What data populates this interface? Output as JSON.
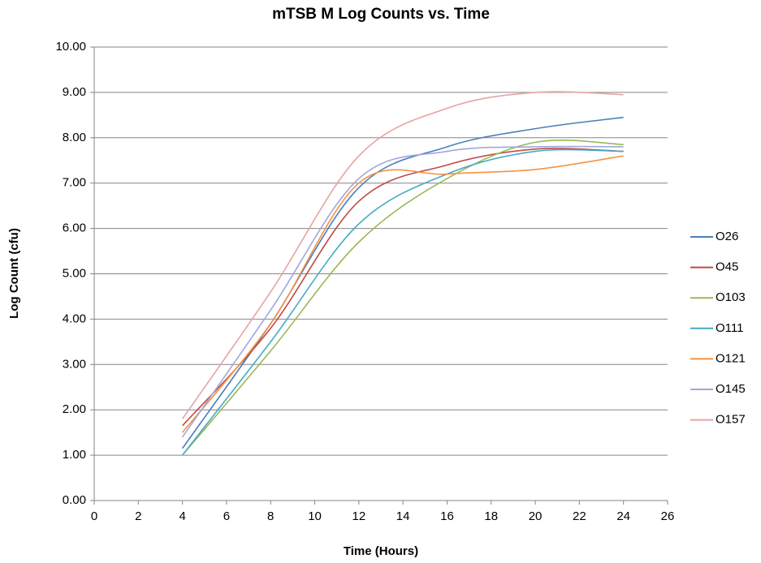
{
  "chart_data": {
    "type": "line",
    "title": "mTSB M Log Counts vs. Time",
    "x_label": "Time (Hours)",
    "y_label": "Log Count  (cfu)",
    "x": [
      4,
      8,
      12,
      16,
      20,
      24
    ],
    "series": [
      {
        "name": "O26",
        "color": "#4a7ebb",
        "values": [
          1.15,
          3.9,
          6.9,
          7.8,
          8.2,
          8.45
        ]
      },
      {
        "name": "O45",
        "color": "#be4b48",
        "values": [
          1.65,
          3.8,
          6.6,
          7.4,
          7.75,
          7.7
        ]
      },
      {
        "name": "O103",
        "color": "#98b954",
        "values": [
          1.0,
          3.3,
          5.7,
          7.1,
          7.9,
          7.85
        ]
      },
      {
        "name": "O111",
        "color": "#46aac5",
        "values": [
          1.0,
          3.5,
          6.1,
          7.2,
          7.7,
          7.7
        ]
      },
      {
        "name": "O121",
        "color": "#f69240",
        "values": [
          1.5,
          3.9,
          7.0,
          7.2,
          7.3,
          7.6
        ]
      },
      {
        "name": "O145",
        "color": "#a0a8d8",
        "values": [
          1.4,
          4.2,
          7.1,
          7.7,
          7.8,
          7.8
        ]
      },
      {
        "name": "O157",
        "color": "#e6a3a3",
        "values": [
          1.8,
          4.6,
          7.6,
          8.65,
          9.0,
          8.95
        ]
      }
    ],
    "xlim": [
      0,
      26
    ],
    "xticks": [
      0,
      2,
      4,
      6,
      8,
      10,
      12,
      14,
      16,
      18,
      20,
      22,
      24,
      26
    ],
    "ylim": [
      0,
      10
    ],
    "yticks": [
      {
        "value": 0,
        "label": "0.00"
      },
      {
        "value": 1,
        "label": "1.00"
      },
      {
        "value": 2,
        "label": "2.00"
      },
      {
        "value": 3,
        "label": "3.00"
      },
      {
        "value": 4,
        "label": "4.00"
      },
      {
        "value": 5,
        "label": "5.00"
      },
      {
        "value": 6,
        "label": "6.00"
      },
      {
        "value": 7,
        "label": "7.00"
      },
      {
        "value": 8,
        "label": "8.00"
      },
      {
        "value": 9,
        "label": "9.00"
      },
      {
        "value": 10,
        "label": "10.00"
      }
    ],
    "grid": true,
    "legend": "right",
    "smooth": true
  }
}
